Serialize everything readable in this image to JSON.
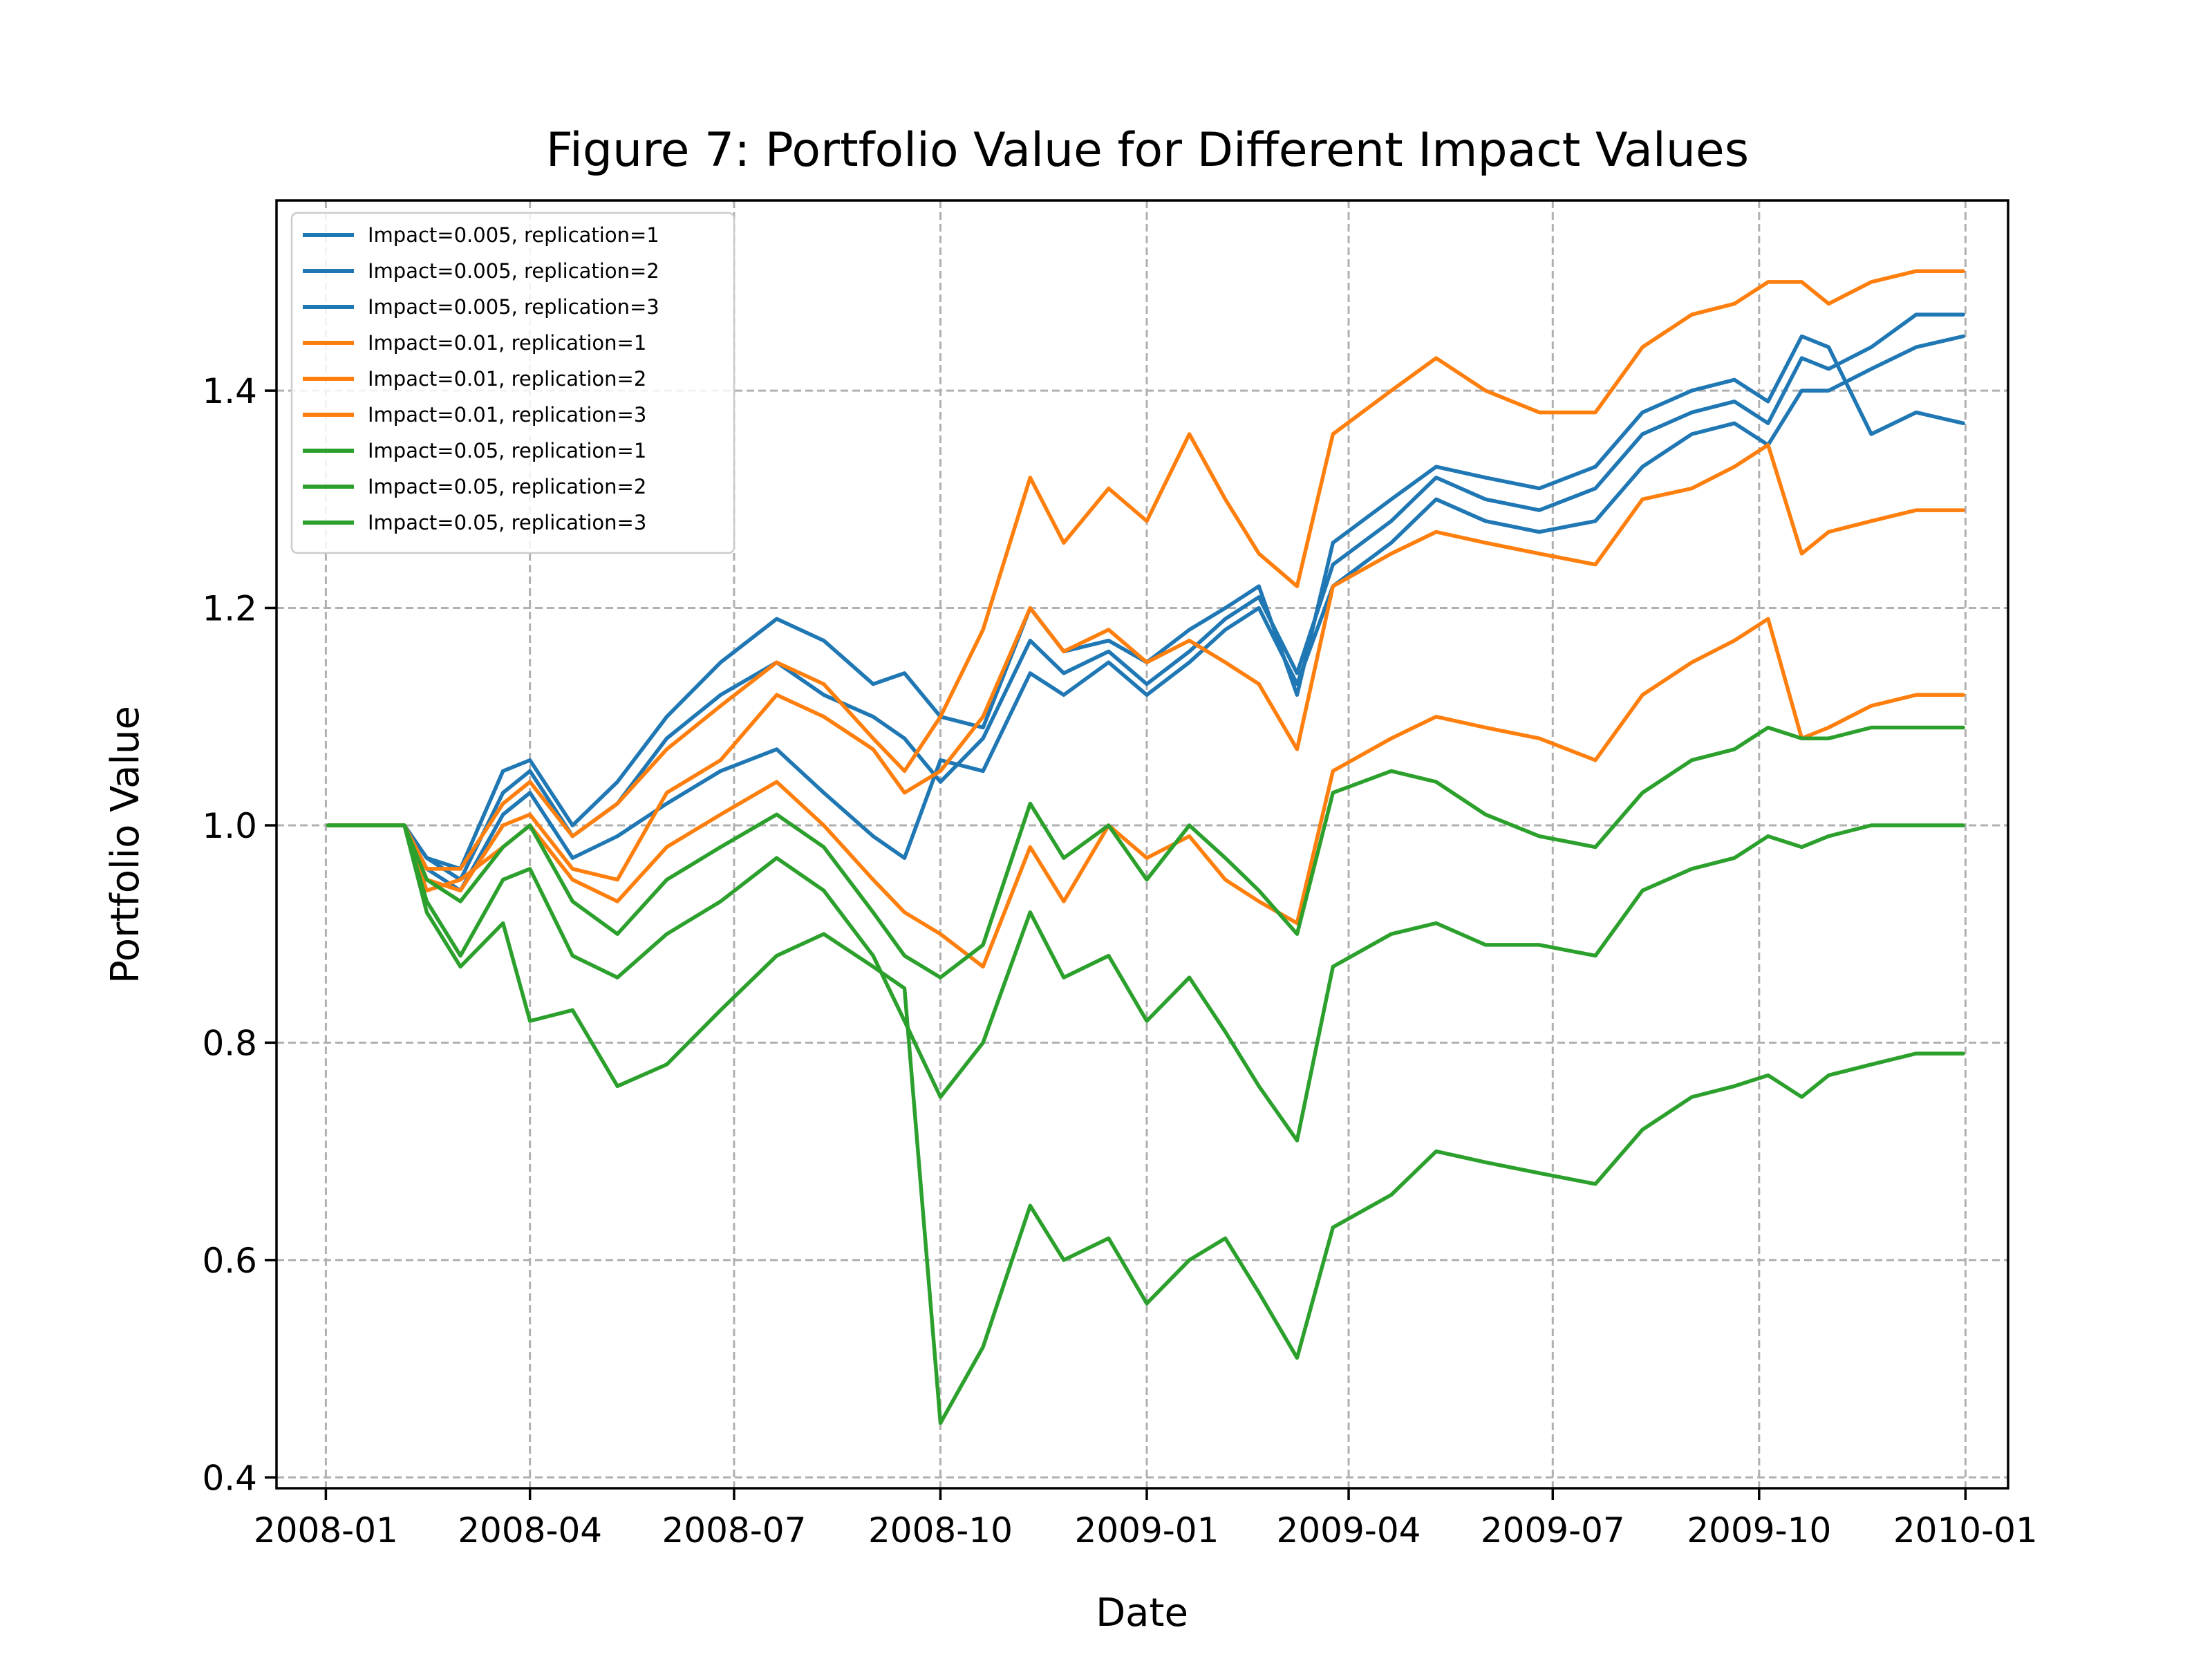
{
  "chart_data": {
    "type": "line",
    "title": "Figure 7: Portfolio Value for Different Impact Values",
    "xlabel": "Date",
    "ylabel": "Portfolio Value",
    "xlim": [
      "2007-12-10",
      "2010-01-20"
    ],
    "ylim": [
      0.39,
      1.575
    ],
    "grid": true,
    "legend_position": "top-left",
    "x_ticks": [
      "2008-01",
      "2008-04",
      "2008-07",
      "2008-10",
      "2009-01",
      "2009-04",
      "2009-07",
      "2009-10",
      "2010-01"
    ],
    "y_ticks": [
      0.4,
      0.6,
      0.8,
      1.0,
      1.2,
      1.4
    ],
    "y_tick_labels": [
      "0.4",
      "0.6",
      "0.8",
      "1.0",
      "1.2",
      "1.4"
    ],
    "colors": {
      "impact_0.005": "#1f77b4",
      "impact_0.01": "#ff7f0e",
      "impact_0.05": "#2ca02c"
    },
    "series": [
      {
        "name": "Impact=0.005, replication=1",
        "color": "#1f77b4",
        "x": [
          "2008-01-02",
          "2008-02-05",
          "2008-02-15",
          "2008-03-01",
          "2008-03-20",
          "2008-04-01",
          "2008-04-20",
          "2008-05-10",
          "2008-06-01",
          "2008-06-25",
          "2008-07-20",
          "2008-08-10",
          "2008-09-01",
          "2008-09-15",
          "2008-10-01",
          "2008-10-20",
          "2008-11-10",
          "2008-11-25",
          "2008-12-15",
          "2009-01-01",
          "2009-01-20",
          "2009-02-05",
          "2009-02-20",
          "2009-03-09",
          "2009-03-25",
          "2009-04-20",
          "2009-05-10",
          "2009-06-01",
          "2009-06-25",
          "2009-07-20",
          "2009-08-10",
          "2009-09-01",
          "2009-09-20",
          "2009-10-05",
          "2009-10-20",
          "2009-11-01",
          "2009-11-20",
          "2009-12-10",
          "2009-12-31"
        ],
        "y": [
          1.0,
          1.0,
          0.97,
          0.96,
          1.05,
          1.06,
          1.0,
          1.04,
          1.1,
          1.15,
          1.19,
          1.17,
          1.13,
          1.14,
          1.1,
          1.09,
          1.2,
          1.16,
          1.17,
          1.15,
          1.18,
          1.2,
          1.22,
          1.12,
          1.26,
          1.3,
          1.33,
          1.32,
          1.31,
          1.33,
          1.38,
          1.4,
          1.41,
          1.39,
          1.45,
          1.44,
          1.36,
          1.38,
          1.37
        ]
      },
      {
        "name": "Impact=0.005, replication=2",
        "color": "#1f77b4",
        "x": [
          "2008-01-02",
          "2008-02-05",
          "2008-02-15",
          "2008-03-01",
          "2008-03-20",
          "2008-04-01",
          "2008-04-20",
          "2008-05-10",
          "2008-06-01",
          "2008-06-25",
          "2008-07-20",
          "2008-08-10",
          "2008-09-01",
          "2008-09-15",
          "2008-10-01",
          "2008-10-20",
          "2008-11-10",
          "2008-11-25",
          "2008-12-15",
          "2009-01-01",
          "2009-01-20",
          "2009-02-05",
          "2009-02-20",
          "2009-03-09",
          "2009-03-25",
          "2009-04-20",
          "2009-05-10",
          "2009-06-01",
          "2009-06-25",
          "2009-07-20",
          "2009-08-10",
          "2009-09-01",
          "2009-09-20",
          "2009-10-05",
          "2009-10-20",
          "2009-11-01",
          "2009-11-20",
          "2009-12-10",
          "2009-12-31"
        ],
        "y": [
          1.0,
          1.0,
          0.97,
          0.95,
          1.03,
          1.05,
          0.99,
          1.02,
          1.08,
          1.12,
          1.15,
          1.12,
          1.1,
          1.08,
          1.04,
          1.08,
          1.17,
          1.14,
          1.16,
          1.13,
          1.16,
          1.19,
          1.21,
          1.14,
          1.24,
          1.28,
          1.32,
          1.3,
          1.29,
          1.31,
          1.36,
          1.38,
          1.39,
          1.37,
          1.43,
          1.42,
          1.44,
          1.47,
          1.47
        ]
      },
      {
        "name": "Impact=0.005, replication=3",
        "color": "#1f77b4",
        "x": [
          "2008-01-02",
          "2008-02-05",
          "2008-02-15",
          "2008-03-01",
          "2008-03-20",
          "2008-04-01",
          "2008-04-20",
          "2008-05-10",
          "2008-06-01",
          "2008-06-25",
          "2008-07-20",
          "2008-08-10",
          "2008-09-01",
          "2008-09-15",
          "2008-10-01",
          "2008-10-20",
          "2008-11-10",
          "2008-11-25",
          "2008-12-15",
          "2009-01-01",
          "2009-01-20",
          "2009-02-05",
          "2009-02-20",
          "2009-03-09",
          "2009-03-25",
          "2009-04-20",
          "2009-05-10",
          "2009-06-01",
          "2009-06-25",
          "2009-07-20",
          "2009-08-10",
          "2009-09-01",
          "2009-09-20",
          "2009-10-05",
          "2009-10-20",
          "2009-11-01",
          "2009-11-20",
          "2009-12-10",
          "2009-12-31"
        ],
        "y": [
          1.0,
          1.0,
          0.96,
          0.94,
          1.01,
          1.03,
          0.97,
          0.99,
          1.02,
          1.05,
          1.07,
          1.03,
          0.99,
          0.97,
          1.06,
          1.05,
          1.14,
          1.12,
          1.15,
          1.12,
          1.15,
          1.18,
          1.2,
          1.13,
          1.22,
          1.26,
          1.3,
          1.28,
          1.27,
          1.28,
          1.33,
          1.36,
          1.37,
          1.35,
          1.4,
          1.4,
          1.42,
          1.44,
          1.45
        ]
      },
      {
        "name": "Impact=0.01, replication=1",
        "color": "#ff7f0e",
        "x": [
          "2008-01-02",
          "2008-02-05",
          "2008-02-15",
          "2008-03-01",
          "2008-03-20",
          "2008-04-01",
          "2008-04-20",
          "2008-05-10",
          "2008-06-01",
          "2008-06-25",
          "2008-07-20",
          "2008-08-10",
          "2008-09-01",
          "2008-09-15",
          "2008-10-01",
          "2008-10-20",
          "2008-11-10",
          "2008-11-25",
          "2008-12-15",
          "2009-01-01",
          "2009-01-20",
          "2009-02-05",
          "2009-02-20",
          "2009-03-09",
          "2009-03-25",
          "2009-04-20",
          "2009-05-10",
          "2009-06-01",
          "2009-06-25",
          "2009-07-20",
          "2009-08-10",
          "2009-09-01",
          "2009-09-20",
          "2009-10-05",
          "2009-10-20",
          "2009-11-01",
          "2009-11-20",
          "2009-12-10",
          "2009-12-31"
        ],
        "y": [
          1.0,
          1.0,
          0.96,
          0.96,
          1.02,
          1.04,
          0.99,
          1.02,
          1.07,
          1.11,
          1.15,
          1.13,
          1.08,
          1.05,
          1.1,
          1.18,
          1.32,
          1.26,
          1.31,
          1.28,
          1.36,
          1.3,
          1.25,
          1.22,
          1.36,
          1.4,
          1.43,
          1.4,
          1.38,
          1.38,
          1.44,
          1.47,
          1.48,
          1.5,
          1.5,
          1.48,
          1.5,
          1.51,
          1.51
        ]
      },
      {
        "name": "Impact=0.01, replication=2",
        "color": "#ff7f0e",
        "x": [
          "2008-01-02",
          "2008-02-05",
          "2008-02-15",
          "2008-03-01",
          "2008-03-20",
          "2008-04-01",
          "2008-04-20",
          "2008-05-10",
          "2008-06-01",
          "2008-06-25",
          "2008-07-20",
          "2008-08-10",
          "2008-09-01",
          "2008-09-15",
          "2008-10-01",
          "2008-10-20",
          "2008-11-10",
          "2008-11-25",
          "2008-12-15",
          "2009-01-01",
          "2009-01-20",
          "2009-02-05",
          "2009-02-20",
          "2009-03-09",
          "2009-03-25",
          "2009-04-20",
          "2009-05-10",
          "2009-06-01",
          "2009-06-25",
          "2009-07-20",
          "2009-08-10",
          "2009-09-01",
          "2009-09-20",
          "2009-10-05",
          "2009-10-20",
          "2009-11-01",
          "2009-11-20",
          "2009-12-10",
          "2009-12-31"
        ],
        "y": [
          1.0,
          1.0,
          0.95,
          0.94,
          1.0,
          1.01,
          0.96,
          0.95,
          1.03,
          1.06,
          1.12,
          1.1,
          1.07,
          1.03,
          1.05,
          1.1,
          1.2,
          1.16,
          1.18,
          1.15,
          1.17,
          1.15,
          1.13,
          1.07,
          1.22,
          1.25,
          1.27,
          1.26,
          1.25,
          1.24,
          1.3,
          1.31,
          1.33,
          1.35,
          1.25,
          1.27,
          1.28,
          1.29,
          1.29
        ]
      },
      {
        "name": "Impact=0.01, replication=3",
        "color": "#ff7f0e",
        "x": [
          "2008-01-02",
          "2008-02-05",
          "2008-02-15",
          "2008-03-01",
          "2008-03-20",
          "2008-04-01",
          "2008-04-20",
          "2008-05-10",
          "2008-06-01",
          "2008-06-25",
          "2008-07-20",
          "2008-08-10",
          "2008-09-01",
          "2008-09-15",
          "2008-10-01",
          "2008-10-20",
          "2008-11-10",
          "2008-11-25",
          "2008-12-15",
          "2009-01-01",
          "2009-01-20",
          "2009-02-05",
          "2009-02-20",
          "2009-03-09",
          "2009-03-25",
          "2009-04-20",
          "2009-05-10",
          "2009-06-01",
          "2009-06-25",
          "2009-07-20",
          "2009-08-10",
          "2009-09-01",
          "2009-09-20",
          "2009-10-05",
          "2009-10-20",
          "2009-11-01",
          "2009-11-20",
          "2009-12-10",
          "2009-12-31"
        ],
        "y": [
          1.0,
          1.0,
          0.94,
          0.95,
          0.98,
          1.0,
          0.95,
          0.93,
          0.98,
          1.01,
          1.04,
          1.0,
          0.95,
          0.92,
          0.9,
          0.87,
          0.98,
          0.93,
          1.0,
          0.97,
          0.99,
          0.95,
          0.93,
          0.91,
          1.05,
          1.08,
          1.1,
          1.09,
          1.08,
          1.06,
          1.12,
          1.15,
          1.17,
          1.19,
          1.08,
          1.09,
          1.11,
          1.12,
          1.12
        ]
      },
      {
        "name": "Impact=0.05, replication=1",
        "color": "#2ca02c",
        "x": [
          "2008-01-02",
          "2008-02-05",
          "2008-02-15",
          "2008-03-01",
          "2008-03-20",
          "2008-04-01",
          "2008-04-20",
          "2008-05-10",
          "2008-06-01",
          "2008-06-25",
          "2008-07-20",
          "2008-08-10",
          "2008-09-01",
          "2008-09-15",
          "2008-10-01",
          "2008-10-20",
          "2008-11-10",
          "2008-11-25",
          "2008-12-15",
          "2009-01-01",
          "2009-01-20",
          "2009-02-05",
          "2009-02-20",
          "2009-03-09",
          "2009-03-25",
          "2009-04-20",
          "2009-05-10",
          "2009-06-01",
          "2009-06-25",
          "2009-07-20",
          "2009-08-10",
          "2009-09-01",
          "2009-09-20",
          "2009-10-05",
          "2009-10-20",
          "2009-11-01",
          "2009-11-20",
          "2009-12-10",
          "2009-12-31"
        ],
        "y": [
          1.0,
          1.0,
          0.95,
          0.93,
          0.98,
          1.0,
          0.93,
          0.9,
          0.95,
          0.98,
          1.01,
          0.98,
          0.92,
          0.88,
          0.86,
          0.89,
          1.02,
          0.97,
          1.0,
          0.95,
          1.0,
          0.97,
          0.94,
          0.9,
          1.03,
          1.05,
          1.04,
          1.01,
          0.99,
          0.98,
          1.03,
          1.06,
          1.07,
          1.09,
          1.08,
          1.08,
          1.09,
          1.09,
          1.09
        ]
      },
      {
        "name": "Impact=0.05, replication=2",
        "color": "#2ca02c",
        "x": [
          "2008-01-02",
          "2008-02-05",
          "2008-02-15",
          "2008-03-01",
          "2008-03-20",
          "2008-04-01",
          "2008-04-20",
          "2008-05-10",
          "2008-06-01",
          "2008-06-25",
          "2008-07-20",
          "2008-08-10",
          "2008-09-01",
          "2008-09-15",
          "2008-10-01",
          "2008-10-20",
          "2008-11-10",
          "2008-11-25",
          "2008-12-15",
          "2009-01-01",
          "2009-01-20",
          "2009-02-05",
          "2009-02-20",
          "2009-03-09",
          "2009-03-25",
          "2009-04-20",
          "2009-05-10",
          "2009-06-01",
          "2009-06-25",
          "2009-07-20",
          "2009-08-10",
          "2009-09-01",
          "2009-09-20",
          "2009-10-05",
          "2009-10-20",
          "2009-11-01",
          "2009-11-20",
          "2009-12-10",
          "2009-12-31"
        ],
        "y": [
          1.0,
          1.0,
          0.93,
          0.88,
          0.95,
          0.96,
          0.88,
          0.86,
          0.9,
          0.93,
          0.97,
          0.94,
          0.88,
          0.82,
          0.75,
          0.8,
          0.92,
          0.86,
          0.88,
          0.82,
          0.86,
          0.81,
          0.76,
          0.71,
          0.87,
          0.9,
          0.91,
          0.89,
          0.89,
          0.88,
          0.94,
          0.96,
          0.97,
          0.99,
          0.98,
          0.99,
          1.0,
          1.0,
          1.0
        ]
      },
      {
        "name": "Impact=0.05, replication=3",
        "color": "#2ca02c",
        "x": [
          "2008-01-02",
          "2008-02-05",
          "2008-02-15",
          "2008-03-01",
          "2008-03-20",
          "2008-04-01",
          "2008-04-20",
          "2008-05-10",
          "2008-06-01",
          "2008-06-25",
          "2008-07-20",
          "2008-08-10",
          "2008-09-01",
          "2008-09-15",
          "2008-10-01",
          "2008-10-20",
          "2008-11-10",
          "2008-11-25",
          "2008-12-15",
          "2009-01-01",
          "2009-01-20",
          "2009-02-05",
          "2009-02-20",
          "2009-03-09",
          "2009-03-25",
          "2009-04-20",
          "2009-05-10",
          "2009-06-01",
          "2009-06-25",
          "2009-07-20",
          "2009-08-10",
          "2009-09-01",
          "2009-09-20",
          "2009-10-05",
          "2009-10-20",
          "2009-11-01",
          "2009-11-20",
          "2009-12-10",
          "2009-12-31"
        ],
        "y": [
          1.0,
          1.0,
          0.92,
          0.87,
          0.91,
          0.82,
          0.83,
          0.76,
          0.78,
          0.83,
          0.88,
          0.9,
          0.87,
          0.85,
          0.45,
          0.52,
          0.65,
          0.6,
          0.62,
          0.56,
          0.6,
          0.62,
          0.57,
          0.51,
          0.63,
          0.66,
          0.7,
          0.69,
          0.68,
          0.67,
          0.72,
          0.75,
          0.76,
          0.77,
          0.75,
          0.77,
          0.78,
          0.79,
          0.79
        ]
      }
    ]
  }
}
